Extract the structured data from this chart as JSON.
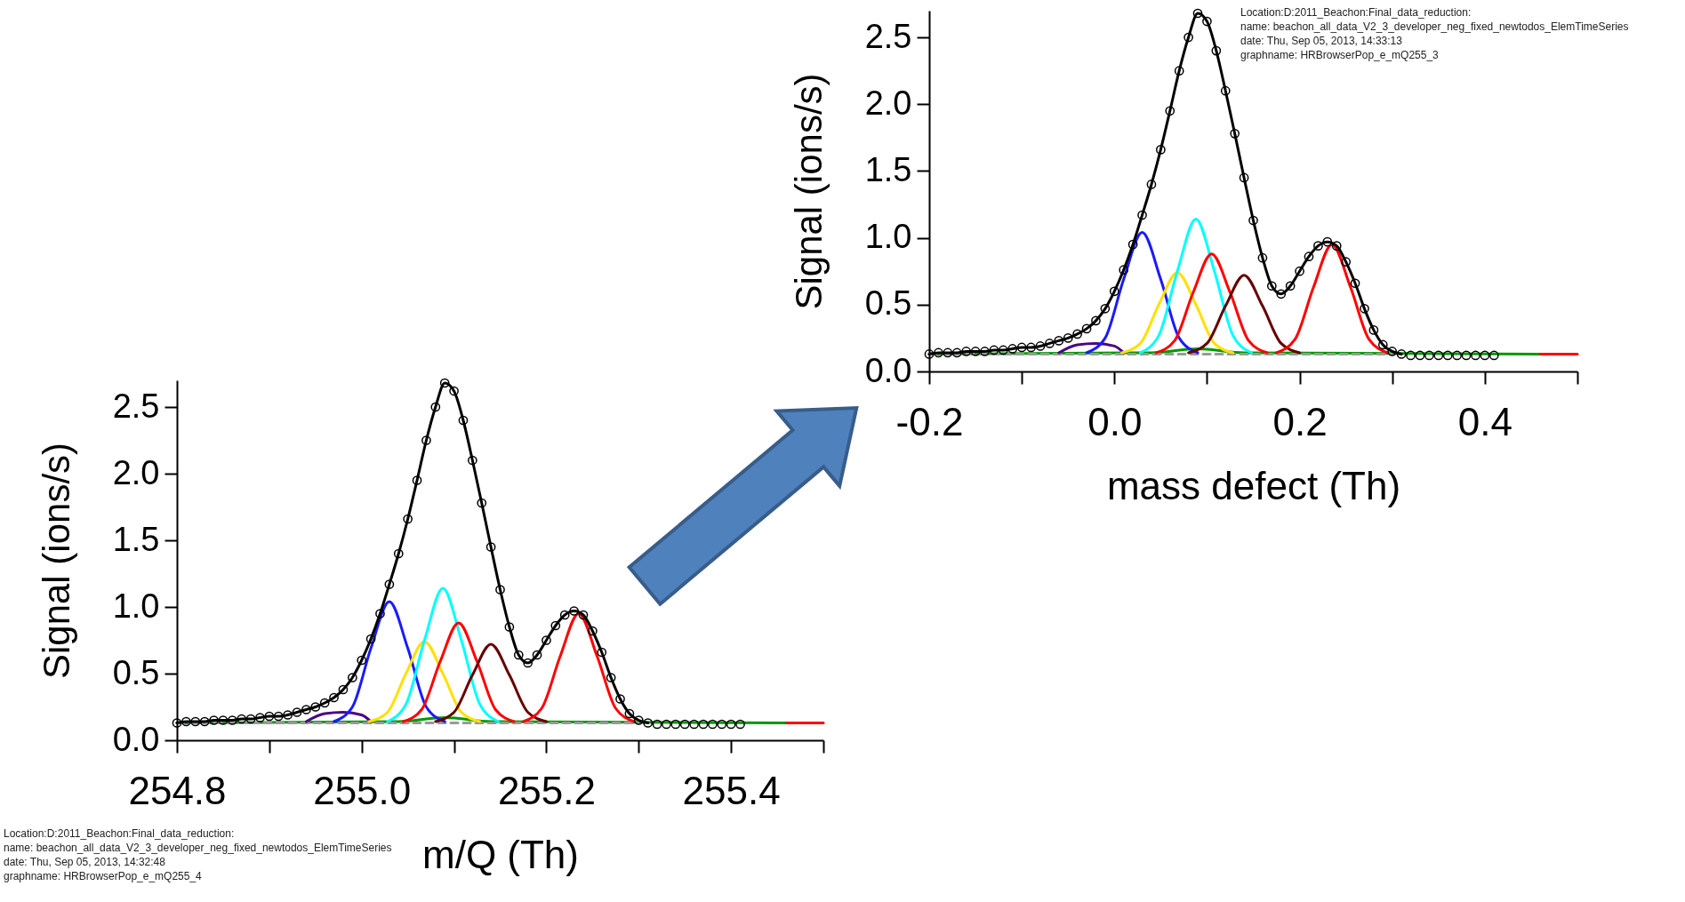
{
  "chart_data": [
    {
      "type": "line",
      "xlabel": "mass defect (Th)",
      "ylabel": "Signal (ions/s)",
      "xlim": [
        -0.2,
        0.5
      ],
      "ylim": [
        0,
        2.7
      ],
      "xticks": [
        -0.2,
        {
          "value": -0.1,
          "label": null
        },
        {
          "value": 0,
          "label": "0.0"
        },
        {
          "value": 0.1,
          "label": null
        },
        0.2,
        {
          "value": 0.3,
          "label": null
        },
        0.4,
        {
          "value": 0.5,
          "label": null
        }
      ],
      "yticks": [
        {
          "value": 0,
          "label": "0.0"
        },
        0.5,
        {
          "value": 1,
          "label": "1.0"
        },
        1.5,
        {
          "value": 2,
          "label": "2.0"
        },
        2.5
      ],
      "annotations": [
        "Location:D:2011_Beachon:Final_data_reduction:",
        "name: beachon_all_data_V2_3_developer_neg_fixed_newtodos_ElemTimeSeries",
        "date: Thu, Sep 05, 2013, 14:33:13",
        "graphname: HRBrowserPop_e_mQ255_3"
      ],
      "series": [
        {
          "type": "line",
          "color": "#009900",
          "x": [
            -0.2,
            0.04,
            0.09,
            0.14,
            0.46
          ],
          "values": [
            0.13,
            0.14,
            0.17,
            0.14,
            0.13
          ]
        },
        {
          "type": "line",
          "color": "#ff0000",
          "x": [
            0.46,
            0.5
          ],
          "values": [
            0.13,
            0.13
          ]
        },
        {
          "type": "line",
          "color": "#999999",
          "line_style": "dashed",
          "x": [
            -0.2,
            0.3
          ],
          "values": [
            0.13,
            0.13
          ]
        },
        {
          "type": "line",
          "color": "#4b0082",
          "x": [
            -0.06,
            -0.04,
            -0.02,
            0,
            0.01
          ],
          "values": [
            0.14,
            0.2,
            0.21,
            0.19,
            0.14
          ]
        },
        {
          "type": "line",
          "color": "#1a1aff",
          "x": [
            -0.03,
            -0.01,
            0.01,
            0.03,
            0.05,
            0.07,
            0.09
          ],
          "values": [
            0.14,
            0.25,
            0.69,
            1.04,
            0.69,
            0.25,
            0.14
          ]
        },
        {
          "type": "line",
          "color": "#ffe000",
          "x": [
            0.008,
            0.028,
            0.048,
            0.068,
            0.088,
            0.108,
            0.128
          ],
          "values": [
            0.14,
            0.21,
            0.5,
            0.74,
            0.5,
            0.21,
            0.14
          ]
        },
        {
          "type": "line",
          "color": "#00ffff",
          "x": [
            0.028,
            0.048,
            0.068,
            0.088,
            0.108,
            0.128,
            0.148
          ],
          "values": [
            0.14,
            0.27,
            0.75,
            1.14,
            0.75,
            0.27,
            0.14
          ]
        },
        {
          "type": "line",
          "color": "#ff0000",
          "x": [
            0.045,
            0.065,
            0.085,
            0.105,
            0.125,
            0.145,
            0.165
          ],
          "values": [
            0.14,
            0.23,
            0.59,
            0.88,
            0.59,
            0.23,
            0.14
          ]
        },
        {
          "type": "line",
          "color": "#660000",
          "x": [
            0.08,
            0.1,
            0.12,
            0.14,
            0.16,
            0.18,
            0.2
          ],
          "values": [
            0.14,
            0.21,
            0.49,
            0.72,
            0.49,
            0.21,
            0.14
          ]
        },
        {
          "type": "line",
          "color": "#ff0000",
          "x": [
            0.175,
            0.195,
            0.215,
            0.235,
            0.255,
            0.275,
            0.295
          ],
          "values": [
            0.14,
            0.24,
            0.63,
            0.95,
            0.63,
            0.24,
            0.14
          ]
        },
        {
          "type": "line",
          "color": "#000000",
          "x": [
            -0.2,
            -0.19,
            -0.18,
            -0.17,
            -0.16,
            -0.15,
            -0.14,
            -0.13,
            -0.12,
            -0.11,
            -0.1,
            -0.09,
            -0.08,
            -0.07,
            -0.06,
            -0.05,
            -0.04,
            -0.03,
            -0.02,
            -0.01,
            0,
            0.01,
            0.02,
            0.03,
            0.04,
            0.05,
            0.06,
            0.07,
            0.08,
            0.09,
            0.1,
            0.11,
            0.12,
            0.13,
            0.14,
            0.15,
            0.16,
            0.17,
            0.18,
            0.19,
            0.2,
            0.21,
            0.22,
            0.23,
            0.24,
            0.25,
            0.26,
            0.27,
            0.28,
            0.29,
            0.3,
            0.31
          ],
          "values": [
            0.13,
            0.14,
            0.14,
            0.14,
            0.15,
            0.15,
            0.15,
            0.16,
            0.16,
            0.17,
            0.18,
            0.18,
            0.19,
            0.21,
            0.23,
            0.25,
            0.28,
            0.32,
            0.38,
            0.47,
            0.6,
            0.76,
            0.95,
            1.17,
            1.4,
            1.66,
            1.95,
            2.25,
            2.5,
            2.68,
            2.62,
            2.4,
            2.1,
            1.78,
            1.45,
            1.13,
            0.85,
            0.64,
            0.58,
            0.64,
            0.75,
            0.86,
            0.94,
            0.97,
            0.94,
            0.82,
            0.66,
            0.47,
            0.31,
            0.2,
            0.15,
            0.13
          ]
        },
        {
          "type": "scatter",
          "marker": "circle",
          "color": "#000000",
          "x": [
            -0.2,
            -0.19,
            -0.18,
            -0.17,
            -0.16,
            -0.15,
            -0.14,
            -0.13,
            -0.12,
            -0.11,
            -0.1,
            -0.09,
            -0.08,
            -0.07,
            -0.06,
            -0.05,
            -0.04,
            -0.03,
            -0.02,
            -0.01,
            0,
            0.01,
            0.02,
            0.03,
            0.04,
            0.05,
            0.06,
            0.07,
            0.08,
            0.09,
            0.1,
            0.11,
            0.12,
            0.13,
            0.14,
            0.15,
            0.16,
            0.17,
            0.18,
            0.19,
            0.2,
            0.21,
            0.22,
            0.23,
            0.24,
            0.25,
            0.26,
            0.27,
            0.28,
            0.29,
            0.3,
            0.31,
            0.32,
            0.33,
            0.34,
            0.35,
            0.36,
            0.37,
            0.38,
            0.39,
            0.4,
            0.41
          ],
          "values": [
            0.13,
            0.14,
            0.14,
            0.14,
            0.15,
            0.15,
            0.15,
            0.16,
            0.16,
            0.17,
            0.18,
            0.18,
            0.19,
            0.21,
            0.23,
            0.25,
            0.28,
            0.32,
            0.38,
            0.47,
            0.6,
            0.76,
            0.95,
            1.17,
            1.4,
            1.66,
            1.95,
            2.25,
            2.5,
            2.68,
            2.62,
            2.4,
            2.1,
            1.78,
            1.45,
            1.13,
            0.85,
            0.64,
            0.58,
            0.64,
            0.75,
            0.86,
            0.94,
            0.97,
            0.94,
            0.82,
            0.66,
            0.47,
            0.31,
            0.2,
            0.15,
            0.13,
            0.12,
            0.12,
            0.12,
            0.12,
            0.12,
            0.12,
            0.12,
            0.12,
            0.12,
            0.12
          ]
        }
      ]
    },
    {
      "type": "line",
      "xlabel": "m/Q (Th)",
      "ylabel": "Signal (ions/s)",
      "xlim": [
        254.8,
        255.5
      ],
      "ylim": [
        0,
        2.7
      ],
      "xticks": [
        254.8,
        {
          "value": 254.9,
          "label": null
        },
        {
          "value": 255,
          "label": "255.0"
        },
        {
          "value": 255.1,
          "label": null
        },
        255.2,
        {
          "value": 255.3,
          "label": null
        },
        255.4,
        {
          "value": 255.5,
          "label": null
        }
      ],
      "yticks": [
        {
          "value": 0,
          "label": "0.0"
        },
        0.5,
        {
          "value": 1,
          "label": "1.0"
        },
        1.5,
        {
          "value": 2,
          "label": "2.0"
        },
        2.5
      ],
      "annotations": [
        "Location:D:2011_Beachon:Final_data_reduction:",
        "name: beachon_all_data_V2_3_developer_neg_fixed_newtodos_ElemTimeSeries",
        "date: Thu, Sep 05, 2013, 14:32:48",
        "graphname: HRBrowserPop_e_mQ255_4"
      ],
      "series": [
        {
          "type": "line",
          "color": "#009900",
          "x": [
            254.8,
            255.04,
            255.09,
            255.14,
            255.46
          ],
          "values": [
            0.13,
            0.14,
            0.17,
            0.14,
            0.13
          ]
        },
        {
          "type": "line",
          "color": "#ff0000",
          "x": [
            255.46,
            255.5
          ],
          "values": [
            0.13,
            0.13
          ]
        },
        {
          "type": "line",
          "color": "#999999",
          "line_style": "dashed",
          "x": [
            254.8,
            255.3
          ],
          "values": [
            0.13,
            0.13
          ]
        },
        {
          "type": "line",
          "color": "#4b0082",
          "x": [
            254.94,
            254.96,
            254.98,
            255,
            255.01
          ],
          "values": [
            0.14,
            0.2,
            0.21,
            0.19,
            0.14
          ]
        },
        {
          "type": "line",
          "color": "#1a1aff",
          "x": [
            254.97,
            254.99,
            255.01,
            255.03,
            255.05,
            255.07,
            255.09
          ],
          "values": [
            0.14,
            0.25,
            0.69,
            1.04,
            0.69,
            0.25,
            0.14
          ]
        },
        {
          "type": "line",
          "color": "#ffe000",
          "x": [
            255.008,
            255.028,
            255.048,
            255.068,
            255.088,
            255.108,
            255.128
          ],
          "values": [
            0.14,
            0.21,
            0.5,
            0.74,
            0.5,
            0.21,
            0.14
          ]
        },
        {
          "type": "line",
          "color": "#00ffff",
          "x": [
            255.028,
            255.048,
            255.068,
            255.088,
            255.108,
            255.128,
            255.148
          ],
          "values": [
            0.14,
            0.27,
            0.75,
            1.14,
            0.75,
            0.27,
            0.14
          ]
        },
        {
          "type": "line",
          "color": "#ff0000",
          "x": [
            255.045,
            255.065,
            255.085,
            255.105,
            255.125,
            255.145,
            255.165
          ],
          "values": [
            0.14,
            0.23,
            0.59,
            0.88,
            0.59,
            0.23,
            0.14
          ]
        },
        {
          "type": "line",
          "color": "#660000",
          "x": [
            255.08,
            255.1,
            255.12,
            255.14,
            255.16,
            255.18,
            255.2
          ],
          "values": [
            0.14,
            0.21,
            0.49,
            0.72,
            0.49,
            0.21,
            0.14
          ]
        },
        {
          "type": "line",
          "color": "#ff0000",
          "x": [
            255.175,
            255.195,
            255.215,
            255.235,
            255.255,
            255.275,
            255.295
          ],
          "values": [
            0.14,
            0.24,
            0.63,
            0.95,
            0.63,
            0.24,
            0.14
          ]
        },
        {
          "type": "line",
          "color": "#000000",
          "x": [
            254.8,
            254.81,
            254.82,
            254.83,
            254.84,
            254.85,
            254.86,
            254.87,
            254.88,
            254.89,
            254.9,
            254.91,
            254.92,
            254.93,
            254.94,
            254.95,
            254.96,
            254.97,
            254.98,
            254.99,
            255,
            255.01,
            255.02,
            255.03,
            255.04,
            255.05,
            255.06,
            255.07,
            255.08,
            255.09,
            255.1,
            255.11,
            255.12,
            255.13,
            255.14,
            255.15,
            255.16,
            255.17,
            255.18,
            255.19,
            255.2,
            255.21,
            255.22,
            255.23,
            255.24,
            255.25,
            255.26,
            255.27,
            255.28,
            255.29,
            255.3,
            255.31
          ],
          "values": [
            0.13,
            0.14,
            0.14,
            0.14,
            0.15,
            0.15,
            0.15,
            0.16,
            0.16,
            0.17,
            0.18,
            0.18,
            0.19,
            0.21,
            0.23,
            0.25,
            0.28,
            0.32,
            0.38,
            0.47,
            0.6,
            0.76,
            0.95,
            1.17,
            1.4,
            1.66,
            1.95,
            2.25,
            2.5,
            2.68,
            2.62,
            2.4,
            2.1,
            1.78,
            1.45,
            1.13,
            0.85,
            0.64,
            0.58,
            0.64,
            0.75,
            0.86,
            0.94,
            0.97,
            0.94,
            0.82,
            0.66,
            0.47,
            0.31,
            0.2,
            0.15,
            0.13
          ]
        },
        {
          "type": "scatter",
          "marker": "circle",
          "color": "#000000",
          "x": [
            254.8,
            254.81,
            254.82,
            254.83,
            254.84,
            254.85,
            254.86,
            254.87,
            254.88,
            254.89,
            254.9,
            254.91,
            254.92,
            254.93,
            254.94,
            254.95,
            254.96,
            254.97,
            254.98,
            254.99,
            255,
            255.01,
            255.02,
            255.03,
            255.04,
            255.05,
            255.06,
            255.07,
            255.08,
            255.09,
            255.1,
            255.11,
            255.12,
            255.13,
            255.14,
            255.15,
            255.16,
            255.17,
            255.18,
            255.19,
            255.2,
            255.21,
            255.22,
            255.23,
            255.24,
            255.25,
            255.26,
            255.27,
            255.28,
            255.29,
            255.3,
            255.31,
            255.32,
            255.33,
            255.34,
            255.35,
            255.36,
            255.37,
            255.38,
            255.39,
            255.4,
            255.41
          ],
          "values": [
            0.13,
            0.14,
            0.14,
            0.14,
            0.15,
            0.15,
            0.15,
            0.16,
            0.16,
            0.17,
            0.18,
            0.18,
            0.19,
            0.21,
            0.23,
            0.25,
            0.28,
            0.32,
            0.38,
            0.47,
            0.6,
            0.76,
            0.95,
            1.17,
            1.4,
            1.66,
            1.95,
            2.25,
            2.5,
            2.68,
            2.62,
            2.4,
            2.1,
            1.78,
            1.45,
            1.13,
            0.85,
            0.64,
            0.58,
            0.64,
            0.75,
            0.86,
            0.94,
            0.97,
            0.94,
            0.82,
            0.66,
            0.47,
            0.31,
            0.2,
            0.15,
            0.13,
            0.12,
            0.12,
            0.12,
            0.12,
            0.12,
            0.12,
            0.12,
            0.12,
            0.12,
            0.12
          ]
        }
      ]
    }
  ]
}
